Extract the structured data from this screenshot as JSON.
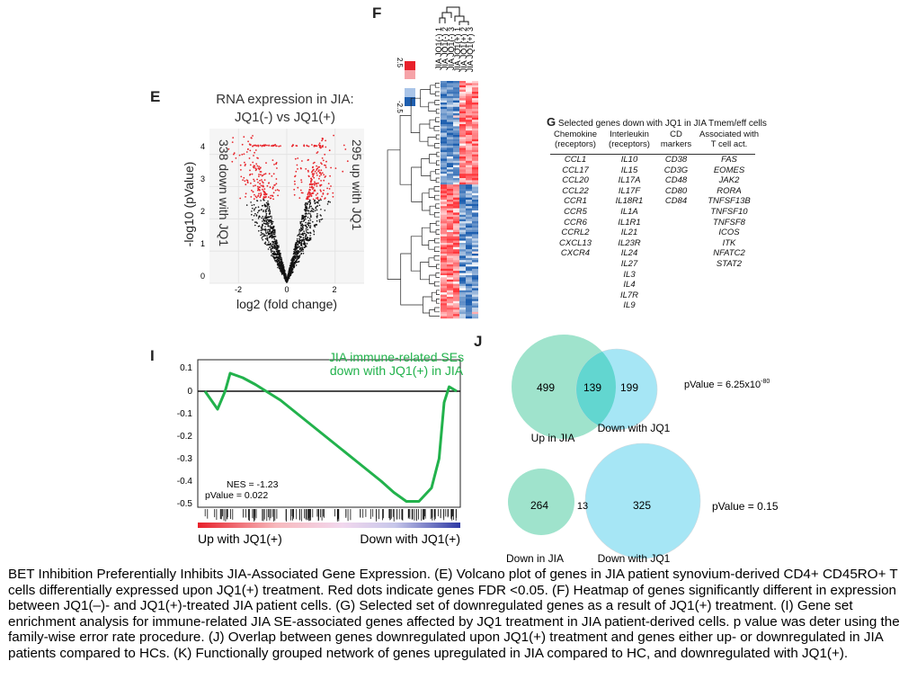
{
  "panels": {
    "E": {
      "letter": "E",
      "title_line1": "RNA expression in JIA:",
      "title_line2": "JQ1(-) vs JQ1(+)",
      "ylabel": "-log10 (pValue)",
      "xlabel": "log2 (fold change)",
      "left_annotation": "338 down with JQ1",
      "right_annotation": "295 up with JQ1",
      "x_ticks": [
        "-2",
        "0",
        "2"
      ],
      "y_ticks": [
        "0",
        "1",
        "2",
        "3",
        "4"
      ]
    },
    "F": {
      "letter": "F",
      "samples": [
        "JIA JQ1(-) 1",
        "JIA JQ1(-) 2",
        "JIA JQ1(-) 3",
        "JIA JQ1(+) 1",
        "JIA JQ1(+) 2",
        "JIA JQ1(+) 3"
      ],
      "scale_high": "2.5",
      "scale_low": "-2.5",
      "colors": {
        "high": "#e8202a",
        "low": "#1f5fb0",
        "mid": "#ffffff"
      }
    },
    "G": {
      "letter": "G",
      "title": "Selected genes down with JQ1 in JIA Tmem/eff cells",
      "columns": [
        {
          "header1": "Chemokine",
          "header2": "(receptors)",
          "genes": [
            "CCL1",
            "CCL17",
            "CCL20",
            "CCL22",
            "CCR1",
            "CCR5",
            "CCR6",
            "CCRL2",
            "CXCL13",
            "CXCR4"
          ]
        },
        {
          "header1": "Interleukin",
          "header2": "(receptors)",
          "genes": [
            "IL10",
            "IL15",
            "IL17A",
            "IL17F",
            "IL18R1",
            "IL1A",
            "IL1R1",
            "IL21",
            "IL23R",
            "IL24",
            "IL27",
            "IL3",
            "IL4",
            "IL7R",
            "IL9"
          ]
        },
        {
          "header1": "CD",
          "header2": "markers",
          "genes": [
            "CD38",
            "CD3G",
            "CD48",
            "CD80",
            "CD84"
          ]
        },
        {
          "header1": "Associated with",
          "header2": "T cell act.",
          "genes": [
            "FAS",
            "EOMES",
            "JAK2",
            "RORA",
            "TNFSF13B",
            "TNFSF10",
            "TNFSF8",
            "ICOS",
            "ITK",
            "NFATC2",
            "STAT2"
          ]
        }
      ]
    },
    "I": {
      "letter": "I",
      "title_line1": "JIA immune-related SEs",
      "title_line2": "down with JQ1(+) in JIA",
      "nes": "NES = -1.23",
      "pvalue": "pValue = 0.022",
      "left_label": "Up with JQ1(+)",
      "right_label": "Down with JQ1(+)",
      "y_ticks": [
        "0.1",
        "0",
        "-0.1",
        "-0.2",
        "-0.3",
        "-0.4",
        "-0.5"
      ],
      "line_color": "#22b24c"
    },
    "J": {
      "letter": "J",
      "venn1": {
        "left_only": "499",
        "overlap": "139",
        "right_only": "199",
        "left_label": "Up in JIA",
        "right_label": "Down with JQ1",
        "pvalue_prefix": "pValue = 6.25x10",
        "pvalue_exp": "-80"
      },
      "venn2": {
        "left_only": "264",
        "overlap": "13",
        "right_only": "325",
        "left_label": "Down in JIA",
        "right_label": "Down with JQ1",
        "pvalue": "pValue = 0.15"
      },
      "colors": {
        "left": "#9fe3cc",
        "right": "#a6e6f5",
        "overlap": "#62d6d0"
      }
    }
  },
  "chart_data": [
    {
      "type": "scatter",
      "title": "RNA expression in JIA: JQ1(-) vs JQ1(+)",
      "xlabel": "log2 (fold change)",
      "ylabel": "-log10 (pValue)",
      "xlim": [
        -3.2,
        3.2
      ],
      "ylim": [
        0,
        4.8
      ],
      "series": [
        {
          "name": "",
          "description": ""
        }
      ],
      "annotations": [
        "338 down with JQ1",
        "295 up with JQ1"
      ]
    },
    {
      "type": "line",
      "title": "JIA immune-related SEs down with JQ1(+) in JIA",
      "ylim": [
        -0.5,
        0.12
      ],
      "x": [
        0,
        0.05,
        0.08,
        0.1,
        0.15,
        0.2,
        0.3,
        0.4,
        0.5,
        0.6,
        0.7,
        0.75,
        0.8,
        0.85,
        0.9,
        0.93,
        0.95,
        0.97,
        1.0
      ],
      "y": [
        0,
        -0.08,
        0.0,
        0.08,
        0.06,
        0.03,
        -0.04,
        -0.13,
        -0.22,
        -0.31,
        -0.4,
        -0.45,
        -0.49,
        -0.49,
        -0.43,
        -0.3,
        -0.05,
        0.02,
        0
      ],
      "annotations": [
        "NES = -1.23",
        "pValue = 0.022"
      ]
    }
  ]
}
